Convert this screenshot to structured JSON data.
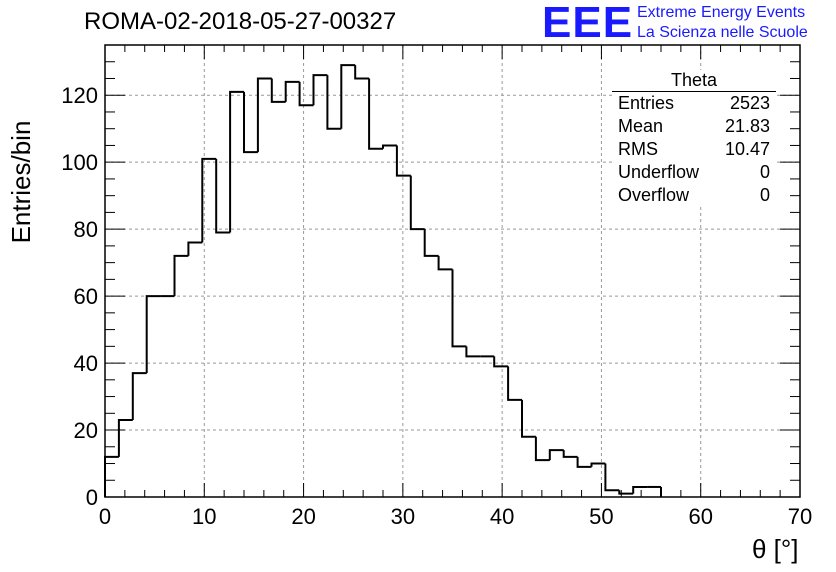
{
  "header": {
    "run_title": "ROMA-02-2018-05-27-00327",
    "logo_text": "EEE",
    "logo_line1": "Extreme Energy Events",
    "logo_line2": "La Scienza nelle Scuole"
  },
  "stats": {
    "title": "Theta",
    "rows": [
      {
        "label": "Entries",
        "value": "2523"
      },
      {
        "label": "Mean",
        "value": "21.83"
      },
      {
        "label": "RMS",
        "value": "10.47"
      },
      {
        "label": "Underflow",
        "value": "0"
      },
      {
        "label": "Overflow",
        "value": "0"
      }
    ]
  },
  "colors": {
    "logo": "#1a1aff",
    "line": "#000000",
    "grid": "#999999"
  },
  "chart_data": {
    "type": "bar",
    "histogram": true,
    "title": "ROMA-02-2018-05-27-00327",
    "xlabel": "θ [°]",
    "ylabel": "Entries/bin",
    "xlim": [
      0,
      70
    ],
    "ylim": [
      0,
      135
    ],
    "bin_width": 1.4,
    "grid": true,
    "x_ticks": [
      0,
      10,
      20,
      30,
      40,
      50,
      60,
      70
    ],
    "y_ticks": [
      0,
      20,
      40,
      60,
      80,
      100,
      120
    ],
    "bin_edges": [
      0,
      1.4,
      2.8,
      4.2,
      5.6,
      7.0,
      8.4,
      9.8,
      11.2,
      12.6,
      14.0,
      15.4,
      16.8,
      18.2,
      19.6,
      21.0,
      22.4,
      23.8,
      25.2,
      26.6,
      28.0,
      29.4,
      30.8,
      32.2,
      33.6,
      35.0,
      36.4,
      37.8,
      39.2,
      40.6,
      42.0,
      43.4,
      44.8,
      46.2,
      47.6,
      49.0,
      50.4,
      51.8,
      53.2,
      54.6,
      56.0
    ],
    "values": [
      12,
      23,
      37,
      60,
      60,
      72,
      76,
      101,
      79,
      121,
      103,
      125,
      118,
      124,
      117,
      126,
      110,
      129,
      125,
      104,
      105,
      96,
      80,
      72,
      68,
      45,
      42,
      42,
      39,
      29,
      18,
      11,
      14,
      12,
      9,
      10,
      2,
      1,
      3,
      3
    ]
  }
}
